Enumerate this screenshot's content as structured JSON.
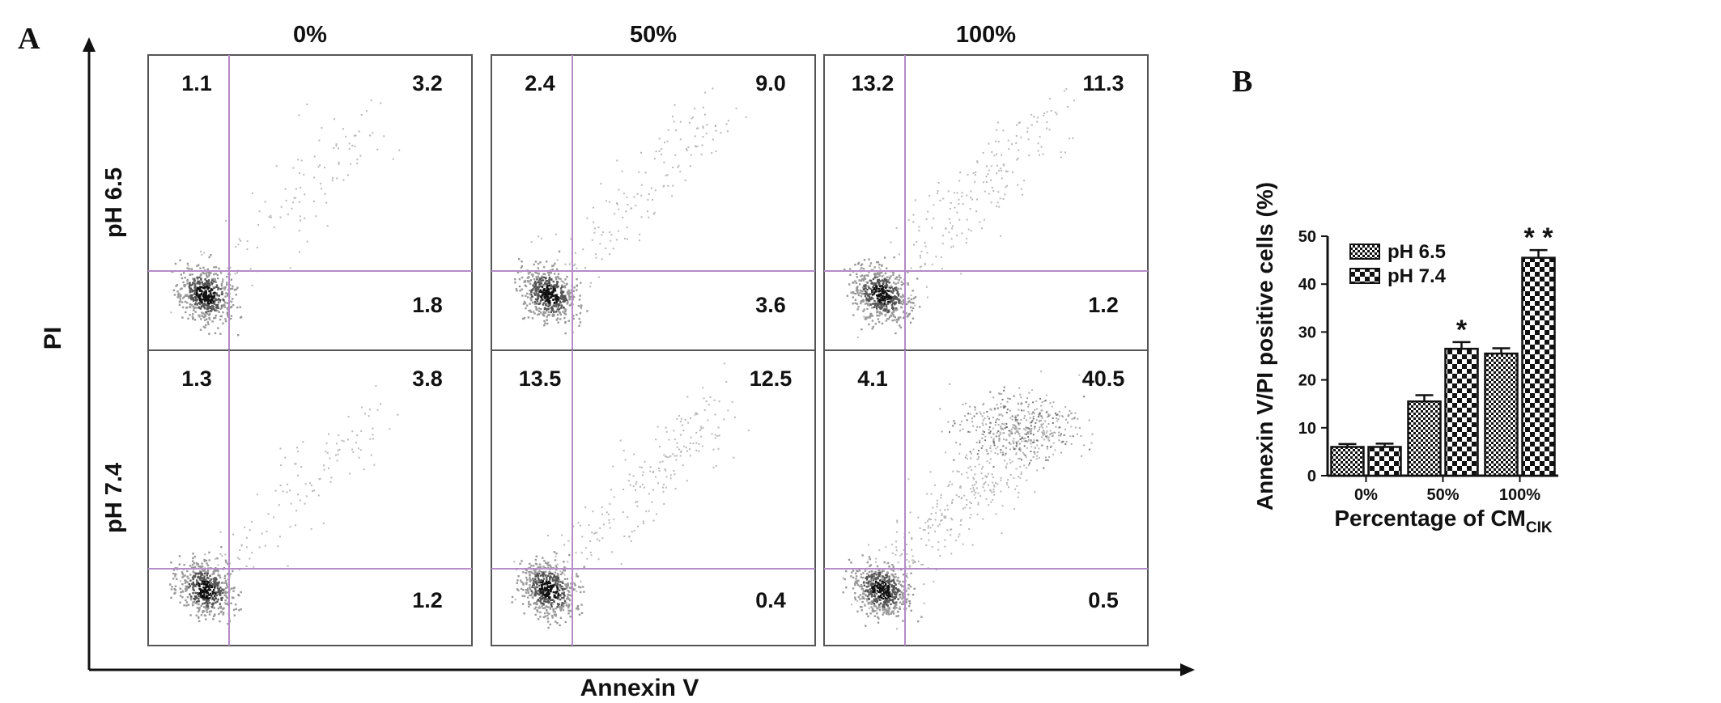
{
  "chart_data": [
    {
      "type": "scatter",
      "panel_label": "A",
      "columns": [
        "0%",
        "50%",
        "100%"
      ],
      "rows": [
        "pH 6.5",
        "pH 7.4"
      ],
      "xlabel": "Annexin V",
      "ylabel": "PI",
      "quadrant_values": [
        [
          {
            "ul": "1.1",
            "ur": "3.2",
            "lr": "1.8"
          },
          {
            "ul": "2.4",
            "ur": "9.0",
            "lr": "3.6"
          },
          {
            "ul": "13.2",
            "ur": "11.3",
            "lr": "1.2"
          }
        ],
        [
          {
            "ul": "1.3",
            "ur": "3.8",
            "lr": "1.2"
          },
          {
            "ul": "13.5",
            "ur": "12.5",
            "lr": "0.4"
          },
          {
            "ul": "4.1",
            "ur": "40.5",
            "lr": "0.5"
          }
        ]
      ]
    },
    {
      "type": "bar",
      "panel_label": "B",
      "categories": [
        "0%",
        "50%",
        "100%"
      ],
      "series": [
        {
          "name": "pH 6.5",
          "values": [
            6,
            15.5,
            25.5
          ],
          "errors": [
            0.6,
            1.3,
            1.1
          ]
        },
        {
          "name": "pH 7.4",
          "values": [
            6,
            26.5,
            45.5
          ],
          "errors": [
            0.7,
            1.4,
            1.6
          ]
        }
      ],
      "significance": [
        "",
        "*",
        "* *"
      ],
      "xlabel_main": "Percentage of CM",
      "xlabel_sub": "CIK",
      "ylabel": "Annexin V/PI positive cells (%)",
      "ylim": [
        0,
        50
      ],
      "yticks": [
        "0",
        "10",
        "20",
        "30",
        "40",
        "50"
      ],
      "legend_position": "top-left"
    }
  ]
}
